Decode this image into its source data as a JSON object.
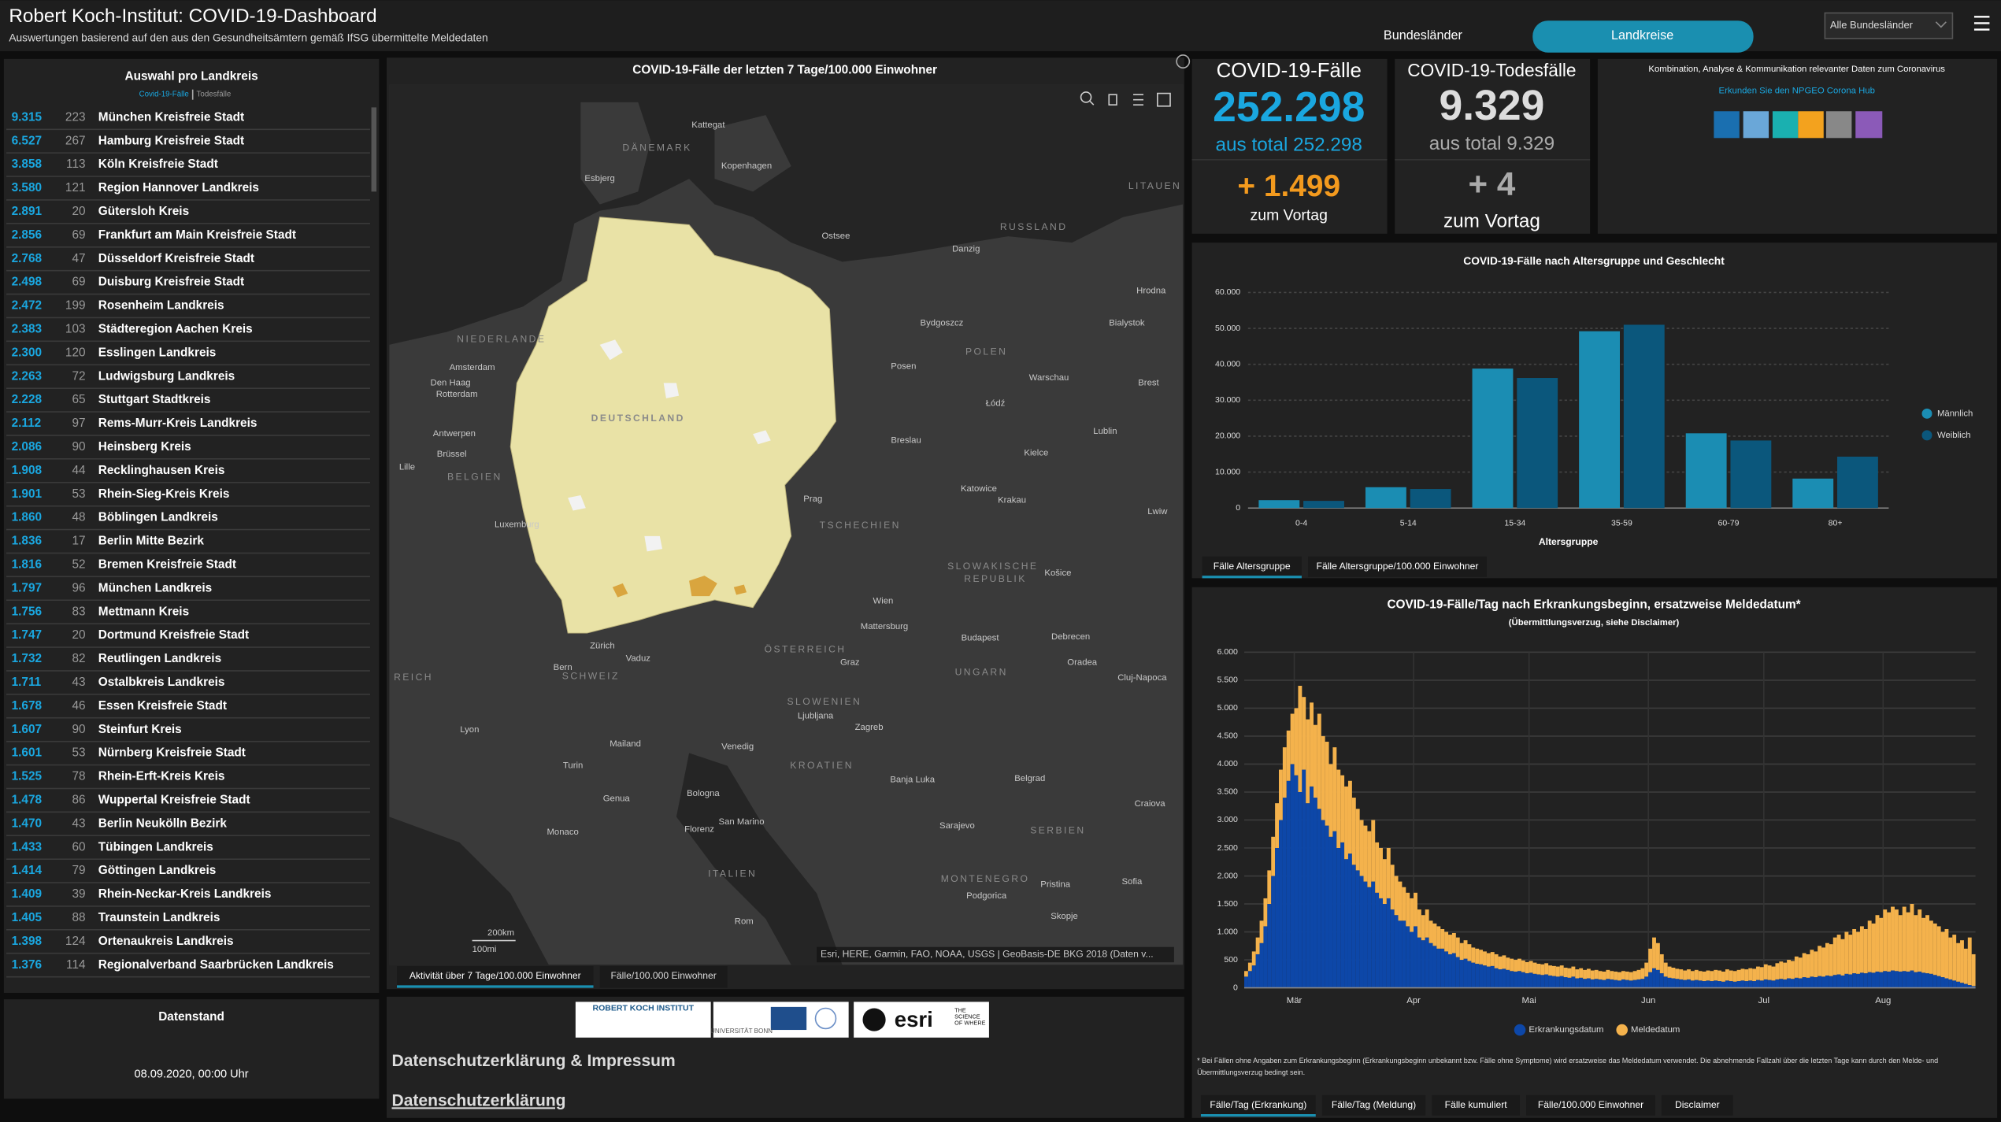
{
  "header": {
    "title": "Robert Koch-Institut: COVID-19-Dashboard",
    "subtitle": "Auswertungen basierend auf den aus den Gesundheitsämtern gemäß IfSG übermittelte Meldedaten",
    "tabs": [
      "Bundesländer",
      "Landkreise"
    ],
    "dropdown": "Alle Bundesländer"
  },
  "district_list": {
    "title": "Auswahl pro Landkreis",
    "legend": [
      "Covid-19-Fälle",
      "Todesfälle"
    ],
    "rows": [
      [
        "9.315",
        "223",
        "München Kreisfreie Stadt"
      ],
      [
        "6.527",
        "267",
        "Hamburg Kreisfreie Stadt"
      ],
      [
        "3.858",
        "113",
        "Köln Kreisfreie Stadt"
      ],
      [
        "3.580",
        "121",
        "Region Hannover Landkreis"
      ],
      [
        "2.891",
        "20",
        "Gütersloh Kreis"
      ],
      [
        "2.856",
        "69",
        "Frankfurt am Main Kreisfreie Stadt"
      ],
      [
        "2.768",
        "47",
        "Düsseldorf Kreisfreie Stadt"
      ],
      [
        "2.498",
        "69",
        "Duisburg Kreisfreie Stadt"
      ],
      [
        "2.472",
        "199",
        "Rosenheim Landkreis"
      ],
      [
        "2.383",
        "103",
        "Städteregion Aachen Kreis"
      ],
      [
        "2.300",
        "120",
        "Esslingen Landkreis"
      ],
      [
        "2.263",
        "72",
        "Ludwigsburg Landkreis"
      ],
      [
        "2.228",
        "65",
        "Stuttgart Stadtkreis"
      ],
      [
        "2.112",
        "97",
        "Rems-Murr-Kreis Landkreis"
      ],
      [
        "2.086",
        "90",
        "Heinsberg Kreis"
      ],
      [
        "1.908",
        "44",
        "Recklinghausen Kreis"
      ],
      [
        "1.901",
        "53",
        "Rhein-Sieg-Kreis Kreis"
      ],
      [
        "1.860",
        "48",
        "Böblingen Landkreis"
      ],
      [
        "1.836",
        "17",
        "Berlin Mitte Bezirk"
      ],
      [
        "1.816",
        "52",
        "Bremen Kreisfreie Stadt"
      ],
      [
        "1.797",
        "96",
        "München Landkreis"
      ],
      [
        "1.756",
        "83",
        "Mettmann Kreis"
      ],
      [
        "1.747",
        "20",
        "Dortmund Kreisfreie Stadt"
      ],
      [
        "1.732",
        "82",
        "Reutlingen Landkreis"
      ],
      [
        "1.711",
        "43",
        "Ostalbkreis Landkreis"
      ],
      [
        "1.678",
        "46",
        "Essen Kreisfreie Stadt"
      ],
      [
        "1.607",
        "90",
        "Steinfurt Kreis"
      ],
      [
        "1.601",
        "53",
        "Nürnberg Kreisfreie Stadt"
      ],
      [
        "1.525",
        "78",
        "Rhein-Erft-Kreis Kreis"
      ],
      [
        "1.478",
        "86",
        "Wuppertal Kreisfreie Stadt"
      ],
      [
        "1.470",
        "43",
        "Berlin Neukölln Bezirk"
      ],
      [
        "1.433",
        "60",
        "Tübingen Landkreis"
      ],
      [
        "1.414",
        "79",
        "Göttingen Landkreis"
      ],
      [
        "1.409",
        "39",
        "Rhein-Neckar-Kreis Landkreis"
      ],
      [
        "1.405",
        "88",
        "Traunstein Landkreis"
      ],
      [
        "1.398",
        "124",
        "Ortenaukreis Landkreis"
      ],
      [
        "1.376",
        "114",
        "Regionalverband Saarbrücken Landkreis"
      ]
    ]
  },
  "datenstand": {
    "title": "Datenstand",
    "value": "08.09.2020, 00:00 Uhr"
  },
  "map": {
    "title": "COVID-19-Fälle der letzten 7 Tage/100.000 Einwohner",
    "labels": [
      "Kattegat",
      "DÄNEMARK",
      "Kopenhagen",
      "Esbjerg",
      "LITAUEN",
      "Ostsee",
      "RUSSLAND",
      "Danzig",
      "Hrodna",
      "Bydgoszcz",
      "Bialystok",
      "NIEDERLANDE",
      "POLEN",
      "Posen",
      "Amsterdam",
      "Warschau",
      "Den Haag",
      "Rotterdam",
      "Brest",
      "DEUTSCHLAND",
      "Łódź",
      "Antwerpen",
      "Lublin",
      "Breslau",
      "Brüssel",
      "Kielce",
      "Lille",
      "BELGIEN",
      "Katowice",
      "Prag",
      "Krakau",
      "Lwiw",
      "Luxemburg",
      "TSCHECHIEN",
      "SLOWAKISCHE",
      "REPUBLIK",
      "Košice",
      "Wien",
      "Mattersburg",
      "Budapest",
      "Debrecen",
      "Zürich",
      "ÖSTERREICH",
      "Bern",
      "Vaduz",
      "Oradea",
      "Graz",
      "SCHWEIZ",
      "UNGARN",
      "Cluj-Napoca",
      "REICH",
      "SLOWENIEN",
      "Ljubljana",
      "Zagreb",
      "Lyon",
      "Mailand",
      "Venedig",
      "KROATIEN",
      "Turin",
      "Belgrad",
      "Banja Luka",
      "Genua",
      "Bologna",
      "Craiova",
      "Sarajevo",
      "San Marino",
      "Florenz",
      "Monaco",
      "SERBIEN",
      "ITALIEN",
      "MONTENEGRO",
      "Sofia",
      "Pristina",
      "Podgorica",
      "Rom",
      "Skopje"
    ],
    "attribution": "Esri, HERE, Garmin, FAO, NOAA, USGS | GeoBasis-DE BKG 2018 (Daten v...",
    "scale": [
      "200km",
      "100mi"
    ],
    "tabs": [
      "Aktivität über 7 Tage/100.000 Einwohner",
      "Fälle/100.000 Einwohner"
    ]
  },
  "footer": {
    "logos": [
      "ROBERT KOCH INSTITUT",
      "UNIVERSITÄT BONN",
      "esri",
      "THE SCIENCE OF WHERE"
    ],
    "heading": "Datenschutzerklärung & Impressum",
    "link": "Datenschutzerklärung"
  },
  "kpis": [
    {
      "title": "COVID-19-Fälle",
      "value": "252.298",
      "total": "aus total 252.298",
      "delta": "+ 1.499",
      "delta_label": "zum Vortag"
    },
    {
      "title": "COVID-19-Todesfälle",
      "value": "9.329",
      "total": "aus total 9.329",
      "delta": "+ 4",
      "delta_label": "zum Vortag"
    }
  ],
  "info": {
    "text": "Kombination, Analyse & Kommunikation relevanter Daten zum Coronavirus",
    "link": "Erkunden Sie den NPGEO Corona Hub"
  },
  "chart_data": [
    {
      "type": "bar",
      "title": "COVID-19-Fälle nach Altersgruppe und Geschlecht",
      "x_label": "Altersgruppe",
      "categories": [
        "0-4",
        "5-14",
        "15-34",
        "35-59",
        "60-79",
        "80+"
      ],
      "series": [
        {
          "name": "Männlich",
          "color": "#1b8db3",
          "values": [
            2200,
            5800,
            38800,
            49200,
            20800,
            8200
          ]
        },
        {
          "name": "Weiblich",
          "color": "#0b577c",
          "values": [
            2000,
            5300,
            36200,
            51000,
            18800,
            14300
          ]
        }
      ],
      "ylim": [
        0,
        60000
      ],
      "yticks": [
        0,
        {
          "value": 10000,
          "label": "10.000"
        },
        {
          "value": 20000,
          "label": "20.000"
        },
        {
          "value": 30000,
          "label": "30.000"
        },
        {
          "value": 40000,
          "label": "40.000"
        },
        {
          "value": 50000,
          "label": "50.000"
        },
        {
          "value": 60000,
          "label": "60.000"
        }
      ],
      "grid": true,
      "legend": "right",
      "tabs": [
        "Fälle Altersgruppe",
        "Fälle Altersgruppe/100.000 Einwohner"
      ]
    },
    {
      "type": "stacked_bar",
      "title": "COVID-19-Fälle/Tag nach Erkrankungsbeginn, ersatzweise Meldedatum*",
      "subtitle": "(Übermittlungsverzug, siehe Disclaimer)",
      "footnote": "* Bei Fällen ohne Angaben zum Erkrankungsbeginn (Erkrankungsbeginn unbekannt bzw. Fälle ohne Symptome) wird ersatzweise das Meldedatum verwendet. Die abnehmende Fallzahl über die letzten Tage kann durch den Melde- und Übermittlungsverzug bedingt sein.",
      "x": [
        0,
        1,
        2,
        3,
        4,
        5,
        6,
        7,
        8,
        9,
        10,
        11,
        12,
        13,
        14,
        15,
        16,
        17,
        18,
        19,
        20,
        21,
        22,
        23,
        24,
        25,
        26,
        27,
        28,
        29,
        30,
        31,
        32,
        33,
        34,
        35,
        36,
        37,
        38,
        39,
        40,
        41,
        42,
        43,
        44,
        45,
        46,
        47,
        48,
        49,
        50,
        51,
        52,
        53,
        54,
        55,
        56,
        57,
        58,
        59,
        60,
        61,
        62,
        63,
        64,
        65,
        66,
        67,
        68,
        69,
        70,
        71,
        72,
        73,
        74,
        75,
        76,
        77,
        78,
        79,
        80,
        81,
        82,
        83,
        84,
        85,
        86,
        87,
        88,
        89,
        90,
        91,
        92,
        93,
        94,
        95,
        96,
        97,
        98,
        99,
        100,
        101,
        102,
        103,
        104,
        105,
        106,
        107,
        108,
        109,
        110,
        111,
        112,
        113,
        114,
        115,
        116,
        117,
        118,
        119,
        120,
        121,
        122,
        123,
        124,
        125,
        126,
        127,
        128,
        129,
        130,
        131,
        132,
        133,
        134,
        135,
        136,
        137,
        138,
        139,
        140,
        141,
        142,
        143,
        144,
        145,
        146,
        147,
        148,
        149,
        150,
        151,
        152,
        153,
        154,
        155,
        156,
        157,
        158,
        159,
        160,
        161,
        162,
        163,
        164,
        165,
        166,
        167,
        168,
        169,
        170,
        171,
        172,
        173,
        174,
        175,
        176,
        177,
        178,
        179,
        180,
        181,
        182,
        183,
        184,
        185,
        186,
        187,
        188,
        189
      ],
      "xlim": [
        0,
        190
      ],
      "xticks": [
        {
          "value": 13,
          "label": "Mär"
        },
        {
          "value": 44,
          "label": "Apr"
        },
        {
          "value": 74,
          "label": "Mai"
        },
        {
          "value": 105,
          "label": "Jun"
        },
        {
          "value": 135,
          "label": "Jul"
        },
        {
          "value": 166,
          "label": "Aug"
        }
      ],
      "series": [
        {
          "name": "Erkrankungsdatum",
          "color": "#0d47a8",
          "values": [
            200,
            300,
            400,
            600,
            800,
            1100,
            1500,
            2000,
            2500,
            3000,
            3400,
            3700,
            4000,
            3800,
            3500,
            3900,
            3300,
            3600,
            3400,
            3200,
            3000,
            2900,
            2700,
            2800,
            2500,
            2600,
            2300,
            2400,
            2200,
            2100,
            2000,
            1900,
            1800,
            1900,
            1700,
            1600,
            1500,
            1600,
            1400,
            1300,
            1200,
            1200,
            1100,
            1000,
            1100,
            900,
            850,
            900,
            800,
            750,
            700,
            700,
            650,
            600,
            620,
            550,
            500,
            520,
            480,
            450,
            430,
            420,
            400,
            380,
            390,
            350,
            330,
            340,
            320,
            300,
            290,
            300,
            280,
            260,
            270,
            250,
            240,
            230,
            240,
            220,
            210,
            200,
            210,
            190,
            180,
            200,
            170,
            180,
            160,
            170,
            150,
            160,
            150,
            140,
            160,
            150,
            140,
            130,
            150,
            140,
            130,
            140,
            150,
            160,
            200,
            280,
            350,
            320,
            260,
            200,
            180,
            170,
            160,
            150,
            140,
            150,
            130,
            140,
            130,
            120,
            130,
            120,
            130,
            120,
            110,
            130,
            120,
            110,
            120,
            130,
            120,
            130,
            120,
            140,
            130,
            150,
            140,
            130,
            150,
            160,
            150,
            170,
            160,
            180,
            170,
            190,
            180,
            200,
            190,
            210,
            200,
            220,
            210,
            230,
            240,
            220,
            250,
            240,
            260,
            250,
            270,
            260,
            280,
            270,
            290,
            280,
            300,
            290,
            310,
            300,
            290,
            300,
            290,
            310,
            280,
            290,
            270,
            260,
            250,
            230,
            210,
            190,
            170,
            150,
            130,
            110,
            90,
            70,
            50,
            30
          ]
        },
        {
          "name": "Meldedatum",
          "color": "#f4b24c",
          "values": [
            100,
            150,
            250,
            300,
            400,
            500,
            600,
            700,
            800,
            900,
            900,
            900,
            900,
            1200,
            1900,
            1300,
            1500,
            1500,
            1300,
            1700,
            1500,
            1500,
            1300,
            1500,
            1400,
            1200,
            1300,
            1300,
            1200,
            1100,
            1000,
            1000,
            1000,
            1100,
            900,
            900,
            800,
            900,
            800,
            700,
            700,
            600,
            600,
            600,
            600,
            500,
            450,
            500,
            400,
            400,
            400,
            350,
            350,
            350,
            360,
            350,
            300,
            330,
            300,
            270,
            270,
            260,
            250,
            240,
            250,
            250,
            230,
            240,
            220,
            220,
            210,
            220,
            210,
            200,
            210,
            200,
            190,
            190,
            200,
            180,
            180,
            180,
            190,
            170,
            170,
            180,
            160,
            170,
            160,
            170,
            160,
            160,
            150,
            150,
            160,
            150,
            150,
            150,
            150,
            150,
            150,
            160,
            170,
            190,
            250,
            420,
            550,
            480,
            340,
            250,
            200,
            190,
            180,
            180,
            170,
            180,
            170,
            180,
            170,
            170,
            180,
            180,
            190,
            190,
            180,
            200,
            190,
            190,
            200,
            210,
            210,
            220,
            220,
            240,
            240,
            270,
            260,
            250,
            290,
            310,
            300,
            330,
            320,
            380,
            370,
            430,
            420,
            480,
            460,
            540,
            520,
            580,
            570,
            670,
            710,
            650,
            750,
            710,
            790,
            750,
            830,
            790,
            920,
            880,
            1010,
            970,
            1100,
            1060,
            1140,
            1100,
            1010,
            1150,
            1060,
            1190,
            1020,
            1110,
            980,
            1040,
            950,
            920,
            890,
            810,
            880,
            750,
            820,
            690,
            760,
            630,
            850,
            570
          ]
        }
      ],
      "ylim": [
        0,
        6000
      ],
      "yticks": [
        0,
        {
          "value": 500,
          "label": "500"
        },
        {
          "value": 1000,
          "label": "1.000"
        },
        {
          "value": 1500,
          "label": "1.500"
        },
        {
          "value": 2000,
          "label": "2.000"
        },
        {
          "value": 2500,
          "label": "2.500"
        },
        {
          "value": 3000,
          "label": "3.000"
        },
        {
          "value": 3500,
          "label": "3.500"
        },
        {
          "value": 4000,
          "label": "4.000"
        },
        {
          "value": 4500,
          "label": "4.500"
        },
        {
          "value": 5000,
          "label": "5.000"
        },
        {
          "value": 5500,
          "label": "5.500"
        },
        {
          "value": 6000,
          "label": "6.000"
        }
      ],
      "grid": true,
      "legend": "bottom",
      "tabs": [
        "Fälle/Tag (Erkrankung)",
        "Fälle/Tag (Meldung)",
        "Fälle kumuliert",
        "Fälle/100.000 Einwohner",
        "Disclaimer"
      ]
    }
  ]
}
